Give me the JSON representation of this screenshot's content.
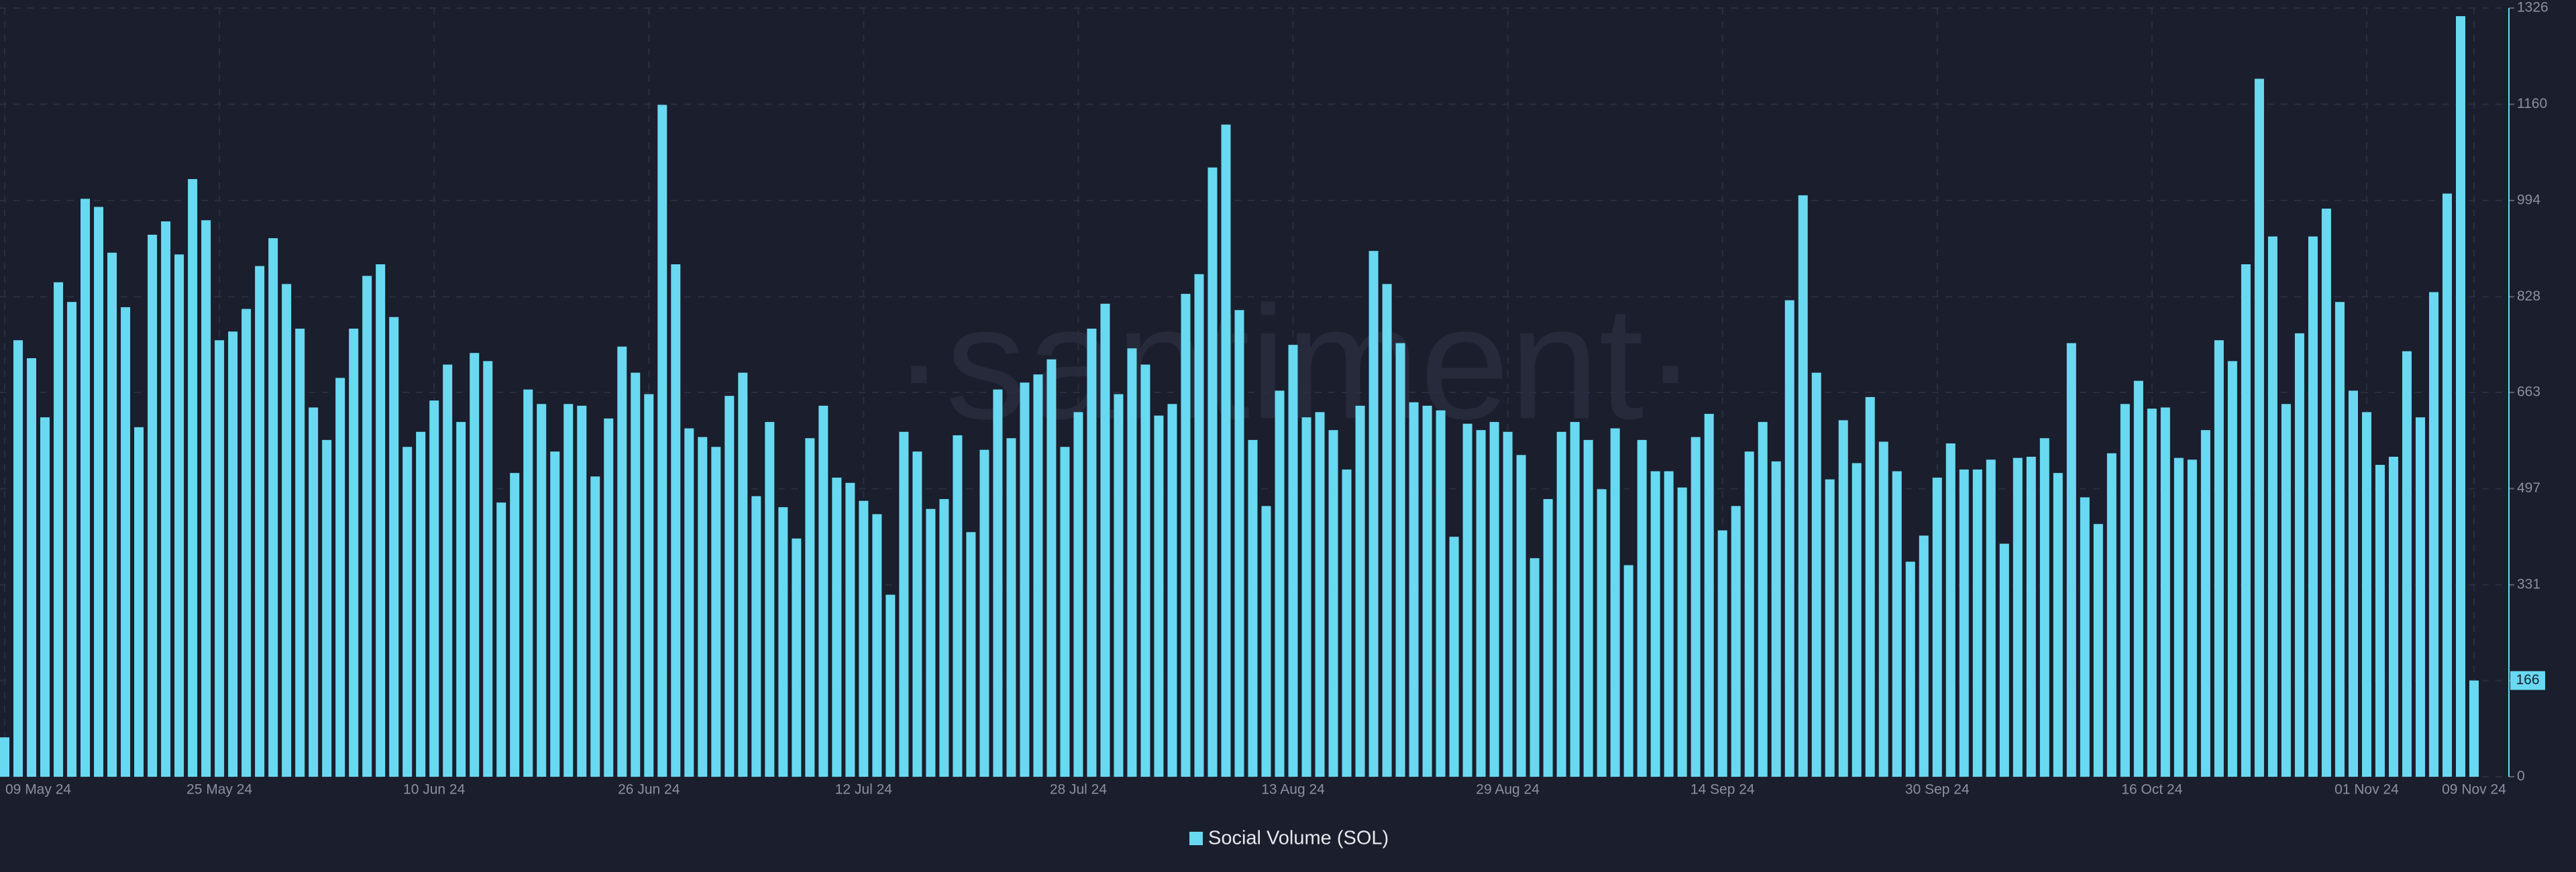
{
  "chart_data": {
    "type": "bar",
    "watermark": "·santiment·",
    "legend": "Social Volume (SOL)",
    "series": [
      {
        "name": "Social Volume (SOL)",
        "color": "#68d9f1",
        "values": [
          68,
          753,
          722,
          620,
          853,
          819,
          997,
          983,
          904,
          810,
          603,
          935,
          958,
          901,
          1031,
          960,
          753,
          768,
          807,
          881,
          929,
          850,
          773,
          637,
          581,
          688,
          773,
          864,
          884,
          793,
          569,
          595,
          649,
          711,
          612,
          731,
          717,
          473,
          524,
          668,
          643,
          561,
          643,
          640,
          518,
          618,
          742,
          697,
          660,
          1159,
          884,
          601,
          586,
          569,
          657,
          697,
          484,
          612,
          465,
          411,
          584,
          640,
          516,
          507,
          476,
          453,
          314,
          595,
          561,
          462,
          479,
          589,
          422,
          564,
          668,
          584,
          680,
          694,
          720,
          569,
          629,
          773,
          816,
          660,
          739,
          711,
          623,
          643,
          833,
          867,
          1051,
          1125,
          805,
          581,
          467,
          666,
          745,
          620,
          629,
          598,
          530,
          640,
          907,
          850,
          748,
          646,
          640,
          632,
          414,
          609,
          598,
          612,
          595,
          555,
          377,
          479,
          595,
          612,
          581,
          496,
          601,
          365,
          581,
          527,
          527,
          499,
          586,
          626,
          425,
          467,
          561,
          612,
          544,
          822,
          1003,
          697,
          513,
          615,
          541,
          655,
          578,
          527,
          371,
          416,
          516,
          575,
          530,
          530,
          547,
          402,
          550,
          552,
          584,
          524,
          748,
          482,
          436,
          558,
          643,
          683,
          635,
          637,
          550,
          547,
          598,
          753,
          717,
          884,
          1204,
          932,
          643,
          765,
          932,
          980,
          819,
          666,
          629,
          538,
          552,
          734,
          620,
          836,
          1006,
          1312,
          166
        ]
      }
    ],
    "categories": [
      "09 May 24",
      null,
      null,
      null,
      null,
      null,
      null,
      null,
      null,
      null,
      null,
      null,
      null,
      null,
      null,
      null,
      "25 May 24",
      null,
      null,
      null,
      null,
      null,
      null,
      null,
      null,
      null,
      null,
      null,
      null,
      null,
      null,
      null,
      "10 Jun 24",
      null,
      null,
      null,
      null,
      null,
      null,
      null,
      null,
      null,
      null,
      null,
      null,
      null,
      null,
      null,
      "26 Jun 24",
      null,
      null,
      null,
      null,
      null,
      null,
      null,
      null,
      null,
      null,
      null,
      null,
      null,
      null,
      null,
      "12 Jul 24",
      null,
      null,
      null,
      null,
      null,
      null,
      null,
      null,
      null,
      null,
      null,
      null,
      null,
      null,
      null,
      "28 Jul 24",
      null,
      null,
      null,
      null,
      null,
      null,
      null,
      null,
      null,
      null,
      null,
      null,
      null,
      null,
      null,
      "13 Aug 24",
      null,
      null,
      null,
      null,
      null,
      null,
      null,
      null,
      null,
      null,
      null,
      null,
      null,
      null,
      null,
      "29 Aug 24",
      null,
      null,
      null,
      null,
      null,
      null,
      null,
      null,
      null,
      null,
      null,
      null,
      null,
      null,
      null,
      "14 Sep 24",
      null,
      null,
      null,
      null,
      null,
      null,
      null,
      null,
      null,
      null,
      null,
      null,
      null,
      null,
      null,
      "30 Sep 24",
      null,
      null,
      null,
      null,
      null,
      null,
      null,
      null,
      null,
      null,
      null,
      null,
      null,
      null,
      null,
      "16 Oct 24",
      null,
      null,
      null,
      null,
      null,
      null,
      null,
      null,
      null,
      null,
      null,
      null,
      null,
      null,
      null,
      "01 Nov 24",
      null,
      null,
      null,
      null,
      null,
      null,
      null,
      "09 Nov 24"
    ],
    "ylim": [
      0,
      1326
    ],
    "yticks": [
      0,
      166,
      331,
      497,
      663,
      828,
      994,
      1160,
      1326
    ],
    "grid": true,
    "legend_position": "bottom"
  }
}
